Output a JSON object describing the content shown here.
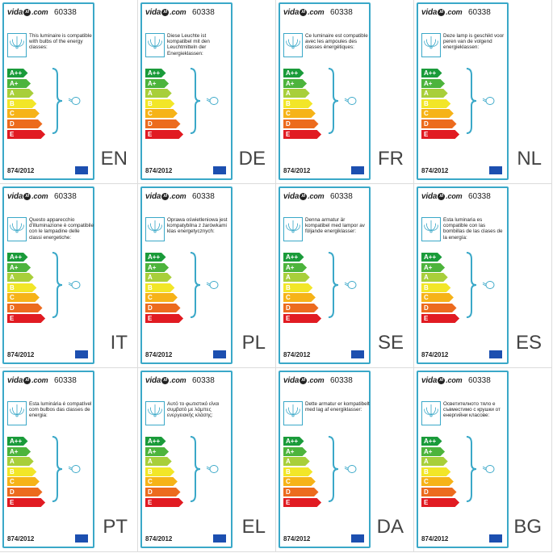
{
  "brand": {
    "prefix": "vida",
    "mark": "xl",
    "suffix": ".com"
  },
  "product_code": "60338",
  "regulation": "874/2012",
  "energy_classes": [
    "A++",
    "A+",
    "A",
    "B",
    "C",
    "D",
    "E"
  ],
  "class_colors": [
    "#1a9b3a",
    "#4db43c",
    "#a8cf3a",
    "#f2e628",
    "#f6b318",
    "#ec6b1e",
    "#e11b22"
  ],
  "labels": [
    {
      "lang": "EN",
      "text": "This luminaire is compatible with bulbs of the energy classes:"
    },
    {
      "lang": "DE",
      "text": "Diese Leuchte ist kompatibel mit den Leuchtmitteln der Energieklassen:"
    },
    {
      "lang": "FR",
      "text": "Ce luminaire est compatible avec les ampoules des classes énergétiques:"
    },
    {
      "lang": "NL",
      "text": "Deze lamp is geschikt voor peren van de volgend energieklassen:"
    },
    {
      "lang": "IT",
      "text": "Questo apparecchio d'illuminazione è compatibile con le lampadine delle classi energetiche:"
    },
    {
      "lang": "PL",
      "text": "Oprawa oświetleniowa jest kompatybilna z żarówkami klas energetycznych:"
    },
    {
      "lang": "SE",
      "text": "Denna armatur är kompatibel med lampor av följande energiklasser:"
    },
    {
      "lang": "ES",
      "text": "Esta luminaria es compatible con las bombillas de las clases de la energía:"
    },
    {
      "lang": "PT",
      "text": "Esta luminária é compatível com bulbos das classes de energia:"
    },
    {
      "lang": "EL",
      "text": "Αυτό το φωτιστικό είναι συμβατό με λάμπες ενεργειακής κλάσης:"
    },
    {
      "lang": "DA",
      "text": "Dette armatur er kompatibelt med lag af energiklasser:"
    },
    {
      "lang": "BG",
      "text": "Осветителното тяло е съвместимо с крушки от енергийни класове:"
    }
  ]
}
